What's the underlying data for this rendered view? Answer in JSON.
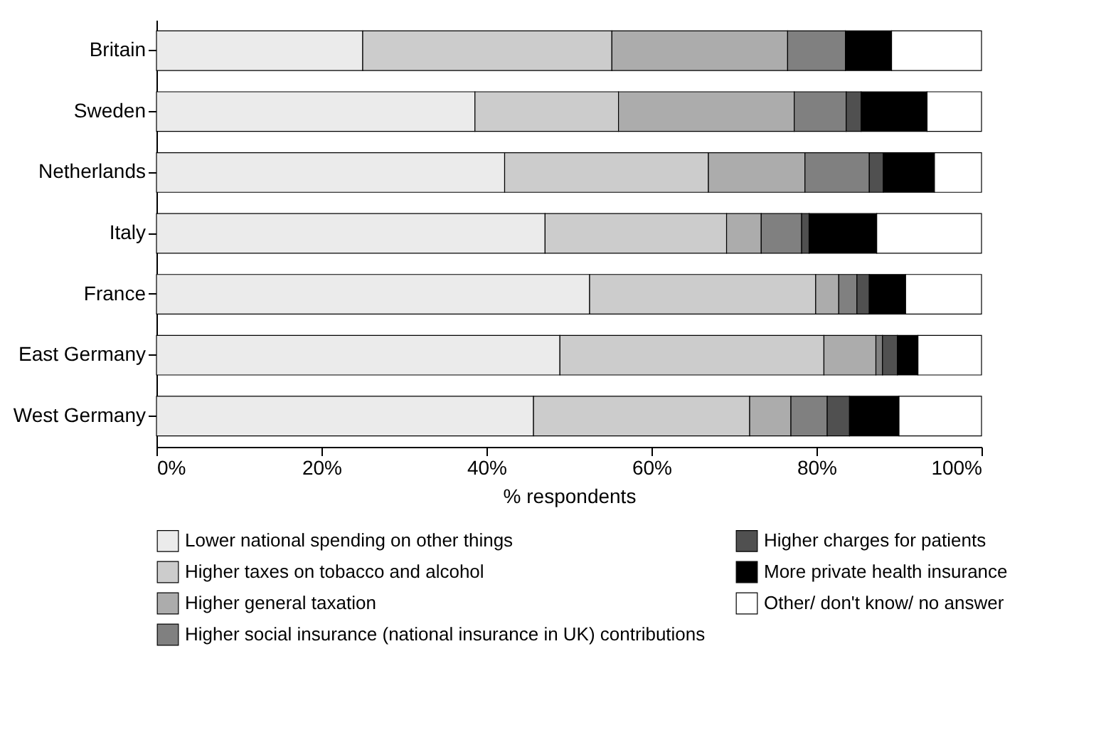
{
  "chart_data": {
    "type": "bar",
    "orientation": "horizontal",
    "stacked": true,
    "xlabel": "% respondents",
    "categories": [
      "Britain",
      "Sweden",
      "Netherlands",
      "Italy",
      "France",
      "East Germany",
      "West Germany"
    ],
    "series": [
      {
        "name": "Lower national spending on other things",
        "color": "#ebebeb",
        "values": [
          25.0,
          38.6,
          42.2,
          47.1,
          52.5,
          48.9,
          45.7
        ]
      },
      {
        "name": "Higher taxes on tobacco and alcohol",
        "color": "#cccccc",
        "values": [
          30.2,
          17.4,
          24.7,
          22.0,
          27.4,
          32.0,
          26.2
        ]
      },
      {
        "name": "Higher general taxation",
        "color": "#acacac",
        "values": [
          21.3,
          21.3,
          11.7,
          4.2,
          2.8,
          6.3,
          5.0
        ]
      },
      {
        "name": "Higher social insurance (national insurance in UK) contributions",
        "color": "#808080",
        "values": [
          7.0,
          6.3,
          7.8,
          4.9,
          2.2,
          0.8,
          4.4
        ]
      },
      {
        "name": "Higher charges for patients",
        "color": "#505050",
        "values": [
          null,
          1.8,
          1.7,
          0.9,
          1.5,
          1.8,
          2.7
        ]
      },
      {
        "name": "More private health insurance",
        "color": "#000000",
        "values": [
          5.6,
          8.0,
          6.2,
          8.2,
          4.4,
          2.5,
          6.0
        ]
      },
      {
        "name": "Other/ don't know/ no answer",
        "color": "#ffffff",
        "values": [
          10.9,
          6.6,
          5.7,
          12.7,
          9.2,
          7.7,
          10.0
        ]
      }
    ],
    "xlim": [
      0,
      100
    ],
    "xticks": [
      {
        "value": 0,
        "label": "0%"
      },
      {
        "value": 20,
        "label": "20%"
      },
      {
        "value": 40,
        "label": "40%"
      },
      {
        "value": 60,
        "label": "60%"
      },
      {
        "value": 80,
        "label": "80%"
      },
      {
        "value": 100,
        "label": "100%"
      }
    ],
    "grid": false,
    "legend": "bottom"
  }
}
